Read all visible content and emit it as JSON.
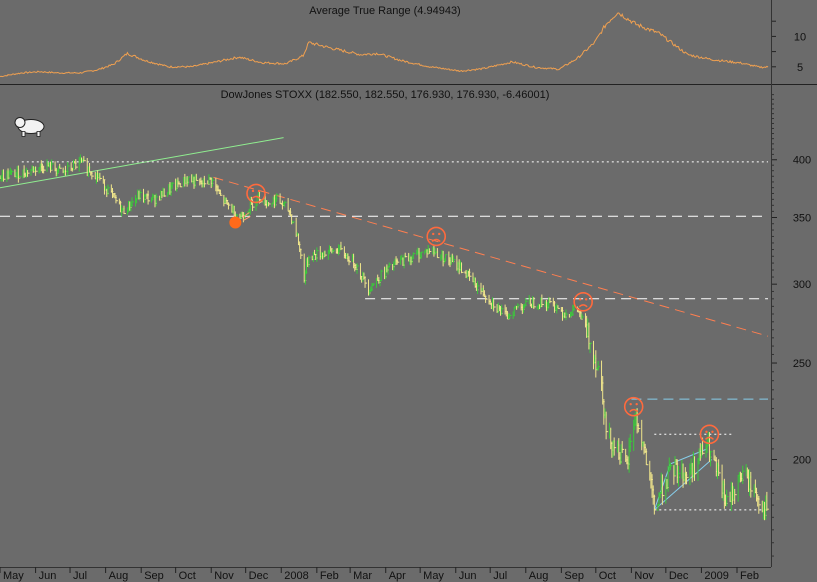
{
  "chart_data": [
    {
      "type": "line",
      "title": "Average True Range (4.94943)",
      "y_ticks": [
        5,
        10
      ],
      "ylim": [
        2.5,
        15
      ],
      "color": "#f0a050",
      "anchors": [
        [
          "2007-05-01",
          3.4
        ],
        [
          "2007-05-20",
          4.0
        ],
        [
          "2007-06-05",
          4.2
        ],
        [
          "2007-06-20",
          4.0
        ],
        [
          "2007-07-10",
          4.0
        ],
        [
          "2007-07-25",
          4.5
        ],
        [
          "2007-08-08",
          5.4
        ],
        [
          "2007-08-20",
          7.2
        ],
        [
          "2007-09-05",
          6.0
        ],
        [
          "2007-09-25",
          5.0
        ],
        [
          "2007-10-15",
          5.0
        ],
        [
          "2007-11-05",
          5.8
        ],
        [
          "2007-11-25",
          6.6
        ],
        [
          "2007-12-15",
          5.7
        ],
        [
          "2008-01-05",
          5.5
        ],
        [
          "2008-01-20",
          6.8
        ],
        [
          "2008-01-25",
          9.0
        ],
        [
          "2008-02-15",
          8.0
        ],
        [
          "2008-03-10",
          7.0
        ],
        [
          "2008-03-25",
          7.2
        ],
        [
          "2008-04-15",
          6.0
        ],
        [
          "2008-05-10",
          5.0
        ],
        [
          "2008-06-05",
          4.3
        ],
        [
          "2008-06-25",
          4.7
        ],
        [
          "2008-07-20",
          5.8
        ],
        [
          "2008-08-10",
          4.9
        ],
        [
          "2008-08-30",
          4.6
        ],
        [
          "2008-09-15",
          6.4
        ],
        [
          "2008-09-30",
          9.0
        ],
        [
          "2008-10-10",
          12.0
        ],
        [
          "2008-10-20",
          14.0
        ],
        [
          "2008-11-05",
          12.0
        ],
        [
          "2008-11-25",
          10.5
        ],
        [
          "2008-12-20",
          7.0
        ],
        [
          "2009-01-10",
          6.2
        ],
        [
          "2009-02-05",
          5.6
        ],
        [
          "2009-02-20",
          4.95
        ]
      ]
    },
    {
      "type": "line",
      "subtype": "bar-ohlc",
      "title": "DowJones STOXX (182.550, 182.550, 176.930, 176.930, -6.46001)",
      "last_bar": {
        "open": 182.55,
        "high": 182.55,
        "low": 176.93,
        "close": 176.93,
        "change": -6.46001
      },
      "y_scale": "log",
      "y_ticks": [
        200,
        250,
        300,
        350,
        400
      ],
      "ylim": [
        156,
        470
      ],
      "x_ticks": [
        "May",
        "Jun",
        "Jul",
        "Aug",
        "Sep",
        "Oct",
        "Nov",
        "Dec",
        "2008",
        "Feb",
        "Mar",
        "Apr",
        "May",
        "Jun",
        "Jul",
        "Aug",
        "Sep",
        "Oct",
        "Nov",
        "Dec",
        "2009",
        "Feb"
      ],
      "x_tick_dates": [
        "2007-05-01",
        "2007-06-01",
        "2007-07-01",
        "2007-08-01",
        "2007-09-01",
        "2007-10-01",
        "2007-11-01",
        "2007-12-01",
        "2008-01-01",
        "2008-02-01",
        "2008-03-01",
        "2008-04-01",
        "2008-05-01",
        "2008-06-01",
        "2008-07-01",
        "2008-08-01",
        "2008-09-01",
        "2008-10-01",
        "2008-11-01",
        "2008-12-01",
        "2009-01-01",
        "2009-02-01"
      ],
      "x_range": [
        "2007-05-01",
        "2009-02-28"
      ],
      "colors": {
        "up": "#3cc83c",
        "down": "#f0e68c"
      },
      "price_anchors": [
        [
          "2007-05-01",
          385
        ],
        [
          "2007-05-20",
          388
        ],
        [
          "2007-06-10",
          395
        ],
        [
          "2007-06-25",
          388
        ],
        [
          "2007-07-10",
          398
        ],
        [
          "2007-07-25",
          385
        ],
        [
          "2007-08-05",
          370
        ],
        [
          "2007-08-16",
          355
        ],
        [
          "2007-08-30",
          368
        ],
        [
          "2007-09-12",
          365
        ],
        [
          "2007-09-28",
          375
        ],
        [
          "2007-10-12",
          383
        ],
        [
          "2007-10-22",
          378
        ],
        [
          "2007-11-01",
          382
        ],
        [
          "2007-11-10",
          365
        ],
        [
          "2007-11-20",
          356
        ],
        [
          "2007-11-26",
          350
        ],
        [
          "2007-12-05",
          360
        ],
        [
          "2007-12-12",
          368
        ],
        [
          "2007-12-20",
          362
        ],
        [
          "2007-12-28",
          365
        ],
        [
          "2008-01-08",
          355
        ],
        [
          "2008-01-15",
          335
        ],
        [
          "2008-01-21",
          305
        ],
        [
          "2008-01-25",
          320
        ],
        [
          "2008-02-05",
          322
        ],
        [
          "2008-02-20",
          325
        ],
        [
          "2008-03-05",
          315
        ],
        [
          "2008-03-17",
          297
        ],
        [
          "2008-03-28",
          306
        ],
        [
          "2008-04-10",
          315
        ],
        [
          "2008-04-25",
          320
        ],
        [
          "2008-05-10",
          325
        ],
        [
          "2008-05-20",
          320
        ],
        [
          "2008-06-05",
          312
        ],
        [
          "2008-06-20",
          298
        ],
        [
          "2008-07-05",
          286
        ],
        [
          "2008-07-15",
          278
        ],
        [
          "2008-07-25",
          285
        ],
        [
          "2008-08-10",
          288
        ],
        [
          "2008-08-25",
          286
        ],
        [
          "2008-09-05",
          280
        ],
        [
          "2008-09-15",
          283
        ],
        [
          "2008-09-25",
          265
        ],
        [
          "2008-10-06",
          240
        ],
        [
          "2008-10-10",
          213
        ],
        [
          "2008-10-20",
          205
        ],
        [
          "2008-10-28",
          196
        ],
        [
          "2008-11-04",
          222
        ],
        [
          "2008-11-12",
          205
        ],
        [
          "2008-11-21",
          178
        ],
        [
          "2008-11-28",
          188
        ],
        [
          "2008-12-08",
          196
        ],
        [
          "2008-12-20",
          193
        ],
        [
          "2009-01-06",
          207
        ],
        [
          "2009-01-15",
          193
        ],
        [
          "2009-01-23",
          180
        ],
        [
          "2009-02-06",
          194
        ],
        [
          "2009-02-20",
          182.55
        ],
        [
          "2009-02-28",
          176.93
        ]
      ],
      "lines": [
        {
          "name": "uptrend-line",
          "color": "#90ee90",
          "dash": false,
          "points": [
            [
              "2007-05-01",
              375
            ],
            [
              "2008-01-03",
              421
            ]
          ]
        },
        {
          "name": "downtrend-line",
          "color": "#ff7f50",
          "dash": true,
          "points": [
            [
              "2007-11-03",
              384
            ],
            [
              "2009-02-28",
              266
            ]
          ]
        },
        {
          "name": "support-350",
          "color": "#ffffff",
          "dash": true,
          "points": [
            [
              "2007-05-01",
              351
            ],
            [
              "2009-02-28",
              351
            ]
          ]
        },
        {
          "name": "support-290",
          "color": "#ffffff",
          "dash": true,
          "points": [
            [
              "2008-03-14",
              290
            ],
            [
              "2009-02-28",
              290
            ]
          ]
        },
        {
          "name": "resistance-400",
          "color": "#ffffff",
          "dash": true,
          "fine": true,
          "points": [
            [
              "2007-05-20",
              398
            ],
            [
              "2009-02-28",
              398
            ]
          ]
        },
        {
          "name": "level-230",
          "color": "#87ceeb",
          "dash": true,
          "points": [
            [
              "2008-11-01",
              230
            ],
            [
              "2009-02-28",
              230
            ]
          ]
        },
        {
          "name": "level-212",
          "color": "#ffffff",
          "dash": true,
          "fine": true,
          "points": [
            [
              "2008-11-21",
              212
            ],
            [
              "2009-01-28",
              212
            ]
          ]
        },
        {
          "name": "level-178",
          "color": "#ffffff",
          "dash": true,
          "fine": true,
          "points": [
            [
              "2008-11-21",
              178
            ],
            [
              "2009-02-28",
              178
            ]
          ]
        },
        {
          "name": "triangle-upper",
          "color": "#87ceeb",
          "dash": false,
          "points": [
            [
              "2008-11-21",
              178
            ],
            [
              "2008-12-05",
              198
            ],
            [
              "2009-01-06",
              205
            ]
          ]
        },
        {
          "name": "triangle-lower",
          "color": "#87ceeb",
          "dash": false,
          "points": [
            [
              "2008-11-21",
              178
            ],
            [
              "2009-01-10",
              200
            ]
          ]
        }
      ],
      "markers": [
        {
          "type": "sad-face",
          "date": "2007-12-10",
          "price": 370
        },
        {
          "type": "sad-face",
          "date": "2008-05-15",
          "price": 335
        },
        {
          "type": "sad-face",
          "date": "2008-09-20",
          "price": 288
        },
        {
          "type": "sad-face",
          "date": "2008-11-03",
          "price": 226
        },
        {
          "type": "sad-face",
          "date": "2009-01-08",
          "price": 212
        },
        {
          "type": "dot",
          "date": "2007-11-22",
          "price": 346,
          "color": "#ff6a1a"
        },
        {
          "type": "bear-icon",
          "date": "2007-05-28",
          "price": 432
        }
      ]
    }
  ]
}
